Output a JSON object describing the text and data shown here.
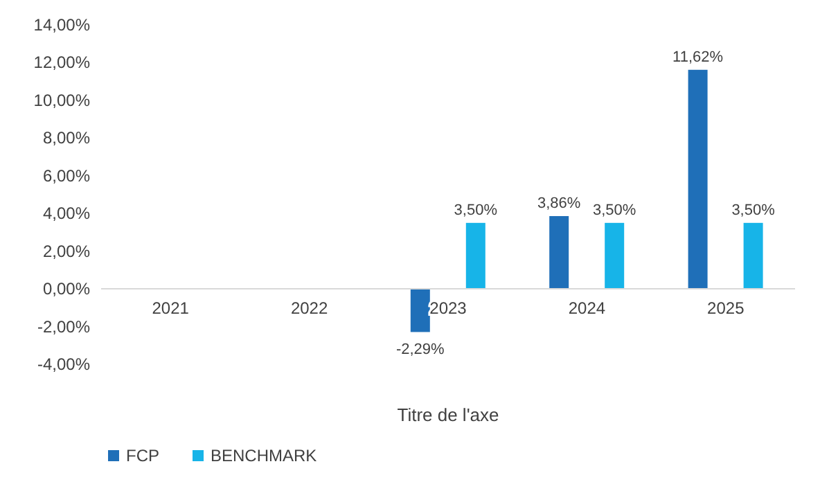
{
  "chart_data": {
    "type": "bar",
    "categories": [
      "2021",
      "2022",
      "2023",
      "2024",
      "2025"
    ],
    "series": [
      {
        "name": "FCP",
        "color": "#1f6fb8",
        "values": [
          null,
          null,
          -2.29,
          3.86,
          11.62
        ],
        "value_labels": [
          null,
          null,
          "-2,29%",
          "3,86%",
          "11,62%"
        ]
      },
      {
        "name": "BENCHMARK",
        "color": "#17b4e8",
        "values": [
          null,
          null,
          3.5,
          3.5,
          3.5
        ],
        "value_labels": [
          null,
          null,
          "3,50%",
          "3,50%",
          "3,50%"
        ]
      }
    ],
    "xlabel": "Titre de l'axe",
    "ylim": [
      -4,
      14
    ],
    "yticks": [
      {
        "value": -4,
        "label": "-4,00%"
      },
      {
        "value": -2,
        "label": "-2,00%"
      },
      {
        "value": 0,
        "label": "0,00%"
      },
      {
        "value": 2,
        "label": "2,00%"
      },
      {
        "value": 4,
        "label": "4,00%"
      },
      {
        "value": 6,
        "label": "6,00%"
      },
      {
        "value": 8,
        "label": "8,00%"
      },
      {
        "value": 10,
        "label": "10,00%"
      },
      {
        "value": 12,
        "label": "12,00%"
      },
      {
        "value": 14,
        "label": "14,00%"
      }
    ],
    "grid": false,
    "legend": "bottom left"
  }
}
